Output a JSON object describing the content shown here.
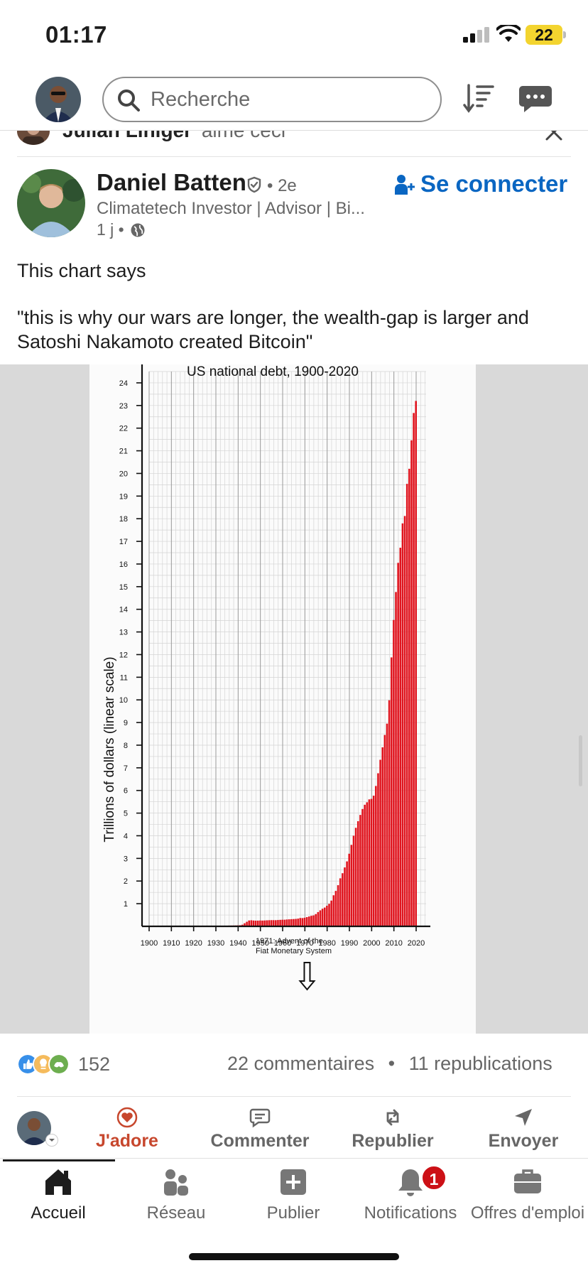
{
  "status_bar": {
    "time": "01:17",
    "battery": "22"
  },
  "header": {
    "search_placeholder": "Recherche"
  },
  "activity": {
    "actor": "Julian Liniger",
    "action": "aime ceci"
  },
  "post": {
    "author_name": "Daniel Batten",
    "degree": "• 2e",
    "connect_label": "Se connecter",
    "headline": "Climatetech Investor | Advisor | Bi...",
    "time": "1 j •",
    "text_line_1": "This chart says",
    "text_line_2": "\"this is why our wars are longer, the wealth-gap is larger and Satoshi Nakamoto created Bitcoin\""
  },
  "chart_data": {
    "type": "bar",
    "title": "US national debt, 1900-2020",
    "ylabel": "Trillions of dollars (linear scale)",
    "xlabel": "",
    "xlim": [
      1900,
      2020
    ],
    "ylim": [
      0,
      24
    ],
    "x_ticks": [
      1900,
      1910,
      1920,
      1930,
      1940,
      1950,
      1960,
      1970,
      1980,
      1990,
      2000,
      2010,
      2020
    ],
    "y_ticks": [
      1,
      2,
      3,
      4,
      5,
      6,
      7,
      8,
      9,
      10,
      11,
      12,
      13,
      14,
      15,
      16,
      17,
      18,
      19,
      20,
      21,
      22,
      23,
      24
    ],
    "annotation": {
      "line1": "1971: Advent of the",
      "line2": "Fiat Monetary System",
      "year": 1971
    },
    "bar_color": "#e0141e",
    "grid": true,
    "x": [
      1900,
      1901,
      1902,
      1903,
      1904,
      1905,
      1906,
      1907,
      1908,
      1909,
      1910,
      1911,
      1912,
      1913,
      1914,
      1915,
      1916,
      1917,
      1918,
      1919,
      1920,
      1921,
      1922,
      1923,
      1924,
      1925,
      1926,
      1927,
      1928,
      1929,
      1930,
      1931,
      1932,
      1933,
      1934,
      1935,
      1936,
      1937,
      1938,
      1939,
      1940,
      1941,
      1942,
      1943,
      1944,
      1945,
      1946,
      1947,
      1948,
      1949,
      1950,
      1951,
      1952,
      1953,
      1954,
      1955,
      1956,
      1957,
      1958,
      1959,
      1960,
      1961,
      1962,
      1963,
      1964,
      1965,
      1966,
      1967,
      1968,
      1969,
      1970,
      1971,
      1972,
      1973,
      1974,
      1975,
      1976,
      1977,
      1978,
      1979,
      1980,
      1981,
      1982,
      1983,
      1984,
      1985,
      1986,
      1987,
      1988,
      1989,
      1990,
      1991,
      1992,
      1993,
      1994,
      1995,
      1996,
      1997,
      1998,
      1999,
      2000,
      2001,
      2002,
      2003,
      2004,
      2005,
      2006,
      2007,
      2008,
      2009,
      2010,
      2011,
      2012,
      2013,
      2014,
      2015,
      2016,
      2017,
      2018,
      2019,
      2020
    ],
    "values": [
      0.001,
      0.001,
      0.001,
      0.001,
      0.001,
      0.001,
      0.001,
      0.001,
      0.001,
      0.001,
      0.001,
      0.001,
      0.001,
      0.001,
      0.001,
      0.003,
      0.003,
      0.01,
      0.02,
      0.025,
      0.024,
      0.023,
      0.023,
      0.022,
      0.021,
      0.02,
      0.019,
      0.018,
      0.018,
      0.017,
      0.016,
      0.017,
      0.019,
      0.022,
      0.027,
      0.029,
      0.034,
      0.036,
      0.037,
      0.04,
      0.043,
      0.049,
      0.072,
      0.137,
      0.201,
      0.259,
      0.269,
      0.258,
      0.252,
      0.253,
      0.257,
      0.255,
      0.259,
      0.266,
      0.271,
      0.274,
      0.273,
      0.272,
      0.28,
      0.287,
      0.291,
      0.293,
      0.303,
      0.31,
      0.316,
      0.322,
      0.328,
      0.34,
      0.368,
      0.365,
      0.381,
      0.408,
      0.436,
      0.466,
      0.484,
      0.542,
      0.629,
      0.706,
      0.777,
      0.829,
      0.909,
      0.995,
      1.137,
      1.372,
      1.565,
      1.817,
      2.121,
      2.346,
      2.601,
      2.868,
      3.206,
      3.598,
      4.002,
      4.351,
      4.643,
      4.921,
      5.181,
      5.369,
      5.478,
      5.606,
      5.629,
      5.77,
      6.198,
      6.76,
      7.355,
      7.905,
      8.451,
      8.951,
      9.986,
      11.876,
      13.529,
      14.764,
      16.051,
      16.719,
      17.794,
      18.12,
      19.539,
      20.206,
      21.462,
      22.669,
      23.201
    ]
  },
  "social": {
    "reactions_count": "152",
    "comments": "22 commentaires",
    "separator": "•",
    "reposts": "11 republications"
  },
  "actions": {
    "love": "J'adore",
    "comment": "Commenter",
    "repost": "Republier",
    "send": "Envoyer"
  },
  "nav": {
    "home": "Accueil",
    "network": "Réseau",
    "post": "Publier",
    "notifications": "Notifications",
    "notifications_badge": "1",
    "jobs": "Offres d'emploi"
  },
  "colors": {
    "brand_blue": "#0a66c2",
    "love_red": "#c7472d",
    "badge_red": "#cc1016"
  }
}
